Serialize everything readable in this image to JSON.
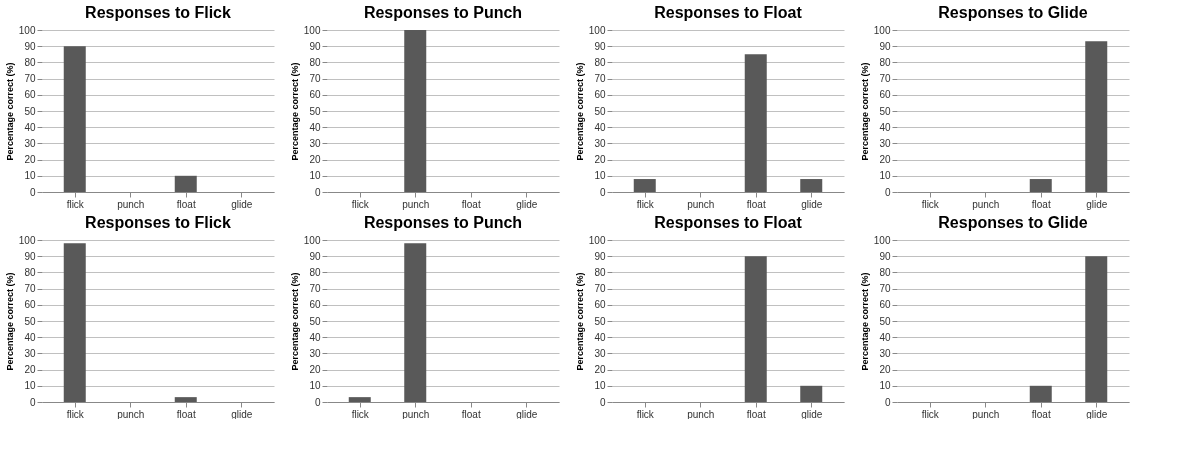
{
  "chart_data": [
    {
      "type": "bar",
      "title": "Responses to Flick",
      "ylabel": "Percentage correct (%)",
      "categories": [
        "flick",
        "punch",
        "float",
        "glide"
      ],
      "values": [
        90,
        0,
        10,
        0
      ],
      "color": "#595959",
      "ylim": [
        0,
        100
      ],
      "yticks": [
        0,
        10,
        20,
        30,
        40,
        50,
        60,
        70,
        80,
        90,
        100
      ],
      "grid": "y"
    },
    {
      "type": "bar",
      "title": "Responses to Punch",
      "ylabel": "Percentage correct (%)",
      "categories": [
        "flick",
        "punch",
        "float",
        "glide"
      ],
      "values": [
        0,
        100,
        0,
        0
      ],
      "color": "#595959",
      "ylim": [
        0,
        100
      ],
      "yticks": [
        0,
        10,
        20,
        30,
        40,
        50,
        60,
        70,
        80,
        90,
        100
      ],
      "grid": "y"
    },
    {
      "type": "bar",
      "title": "Responses to Float",
      "ylabel": "Percentage correct (%)",
      "categories": [
        "flick",
        "punch",
        "float",
        "glide"
      ],
      "values": [
        8,
        0,
        85,
        8
      ],
      "color": "#595959",
      "ylim": [
        0,
        100
      ],
      "yticks": [
        0,
        10,
        20,
        30,
        40,
        50,
        60,
        70,
        80,
        90,
        100
      ],
      "grid": "y"
    },
    {
      "type": "bar",
      "title": "Responses to Glide",
      "ylabel": "Percentage correct (%)",
      "categories": [
        "flick",
        "punch",
        "float",
        "glide"
      ],
      "values": [
        0,
        0,
        8,
        93
      ],
      "color": "#595959",
      "ylim": [
        0,
        100
      ],
      "yticks": [
        0,
        10,
        20,
        30,
        40,
        50,
        60,
        70,
        80,
        90,
        100
      ],
      "grid": "y"
    },
    {
      "type": "bar",
      "title": "Responses to Flick",
      "ylabel": "Percentage correct (%)",
      "categories": [
        "flick",
        "punch",
        "float",
        "glide"
      ],
      "values": [
        98,
        0,
        3,
        0
      ],
      "color": "#595959",
      "ylim": [
        0,
        100
      ],
      "yticks": [
        0,
        10,
        20,
        30,
        40,
        50,
        60,
        70,
        80,
        90,
        100
      ],
      "grid": "y"
    },
    {
      "type": "bar",
      "title": "Responses to Punch",
      "ylabel": "Percentage correct (%)",
      "categories": [
        "flick",
        "punch",
        "float",
        "glide"
      ],
      "values": [
        3,
        98,
        0,
        0
      ],
      "color": "#595959",
      "ylim": [
        0,
        100
      ],
      "yticks": [
        0,
        10,
        20,
        30,
        40,
        50,
        60,
        70,
        80,
        90,
        100
      ],
      "grid": "y"
    },
    {
      "type": "bar",
      "title": "Responses to Float",
      "ylabel": "Percentage correct (%)",
      "categories": [
        "flick",
        "punch",
        "float",
        "glide"
      ],
      "values": [
        0,
        0,
        90,
        10
      ],
      "color": "#595959",
      "ylim": [
        0,
        100
      ],
      "yticks": [
        0,
        10,
        20,
        30,
        40,
        50,
        60,
        70,
        80,
        90,
        100
      ],
      "grid": "y"
    },
    {
      "type": "bar",
      "title": "Responses to Glide",
      "ylabel": "Percentage correct (%)",
      "categories": [
        "flick",
        "punch",
        "float",
        "glide"
      ],
      "values": [
        0,
        0,
        10,
        90
      ],
      "color": "#595959",
      "ylim": [
        0,
        100
      ],
      "yticks": [
        0,
        10,
        20,
        30,
        40,
        50,
        60,
        70,
        80,
        90,
        100
      ],
      "grid": "y"
    }
  ]
}
